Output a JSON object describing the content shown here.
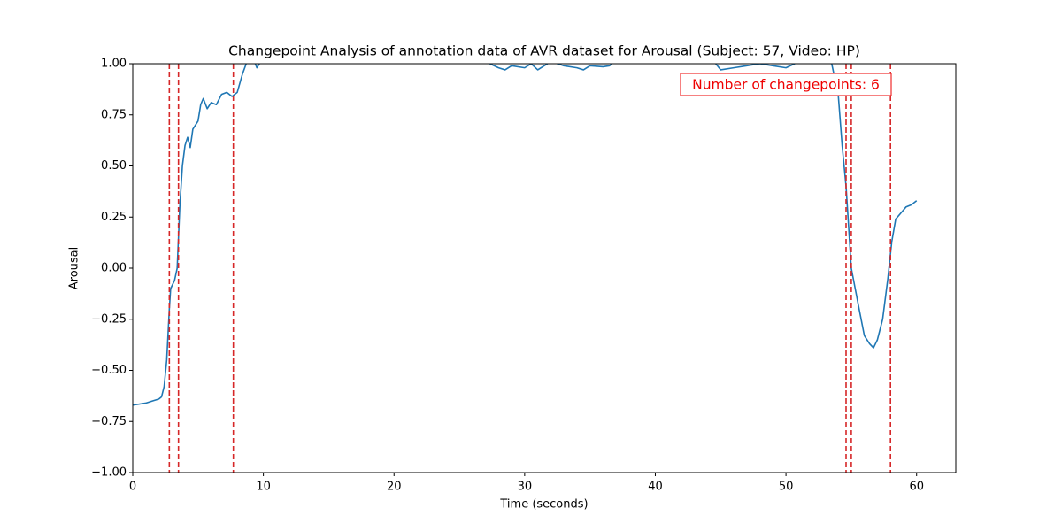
{
  "chart_data": {
    "type": "line",
    "title": "Changepoint Analysis of annotation data of AVR dataset for Arousal (Subject: 57, Video: HP)",
    "x_label": "Time (seconds)",
    "y_label": "Arousal",
    "x": [
      0,
      1,
      1.5,
      2,
      2.2,
      2.4,
      2.6,
      2.8,
      2.9,
      3.2,
      3.4,
      3.6,
      3.8,
      4.0,
      4.2,
      4.4,
      4.6,
      5.0,
      5.2,
      5.4,
      5.7,
      6.0,
      6.4,
      6.8,
      7.2,
      7.6,
      8.0,
      8.4,
      8.8,
      9.2,
      9.5,
      9.8,
      10.5,
      15,
      20,
      25,
      27,
      28,
      28.5,
      29,
      30,
      30.5,
      31,
      31.5,
      32,
      33,
      34,
      34.5,
      35,
      36,
      36.5,
      37,
      38,
      41,
      44.5,
      45,
      46,
      47,
      48,
      49,
      50,
      51,
      52,
      53.5,
      54,
      54.3,
      54.6,
      54.8,
      55.0,
      55.3,
      55.6,
      56.0,
      56.4,
      56.7,
      57.0,
      57.4,
      57.8,
      58.1,
      58.4,
      58.8,
      59.2,
      59.6,
      60.0
    ],
    "series": [
      {
        "name": "Arousal",
        "color": "#1f77b4",
        "values": [
          -0.67,
          -0.66,
          -0.65,
          -0.64,
          -0.63,
          -0.58,
          -0.45,
          -0.2,
          -0.1,
          -0.06,
          0.0,
          0.3,
          0.5,
          0.6,
          0.64,
          0.59,
          0.68,
          0.72,
          0.8,
          0.83,
          0.78,
          0.81,
          0.8,
          0.85,
          0.86,
          0.84,
          0.86,
          0.95,
          1.02,
          1.03,
          0.98,
          1.01,
          1.05,
          1.08,
          1.06,
          1.05,
          1.01,
          0.98,
          0.97,
          0.99,
          0.98,
          1.0,
          0.97,
          0.99,
          1.01,
          0.99,
          0.98,
          0.97,
          0.99,
          0.985,
          0.99,
          1.02,
          1.05,
          1.07,
          1.01,
          0.97,
          0.98,
          0.99,
          1.0,
          0.99,
          0.98,
          1.01,
          1.02,
          1.0,
          0.85,
          0.6,
          0.4,
          0.2,
          0.0,
          -0.1,
          -0.2,
          -0.33,
          -0.37,
          -0.39,
          -0.35,
          -0.25,
          -0.05,
          0.13,
          0.24,
          0.27,
          0.3,
          0.31,
          0.33
        ]
      }
    ],
    "changepoints": {
      "x": [
        2.8,
        3.5,
        7.7,
        54.6,
        55.0,
        58.0
      ],
      "color": "#d62728"
    },
    "annotation": "Number of changepoints: 6",
    "xlim": [
      0,
      63
    ],
    "ylim": [
      -1,
      1
    ],
    "xticks": [
      0,
      10,
      20,
      30,
      40,
      50,
      60
    ],
    "yticks": [
      {
        "value": -1,
        "label": "−1.00"
      },
      {
        "value": -0.75,
        "label": "−0.75"
      },
      {
        "value": -0.5,
        "label": "−0.50"
      },
      {
        "value": -0.25,
        "label": "−0.25"
      },
      {
        "value": 0,
        "label": "0.00"
      },
      {
        "value": 0.25,
        "label": "0.25"
      },
      {
        "value": 0.5,
        "label": "0.50"
      },
      {
        "value": 0.75,
        "label": "0.75"
      },
      {
        "value": 1,
        "label": "1.00"
      }
    ],
    "grid": false
  }
}
